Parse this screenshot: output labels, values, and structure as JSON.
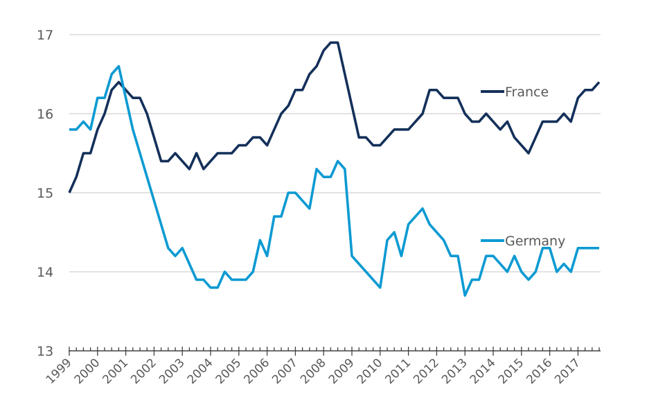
{
  "chart_data": {
    "type": "line",
    "title": "",
    "xlabel": "",
    "ylabel": "",
    "ylim": [
      13,
      17
    ],
    "yticks": [
      "13",
      "14",
      "15",
      "16",
      "17"
    ],
    "grid": true,
    "x_start": "1999Q1",
    "x_frequency": "quarterly",
    "xtick_labels": [
      "1999",
      "2000",
      "2001",
      "2002",
      "2003",
      "2004",
      "2005",
      "2006",
      "2007",
      "2008",
      "2009",
      "2010",
      "2011",
      "2012",
      "2013",
      "2014",
      "2015",
      "2016",
      "2017"
    ],
    "series": [
      {
        "name": "France",
        "color": "#14305a",
        "values": [
          15.0,
          15.2,
          15.5,
          15.5,
          15.8,
          16.0,
          16.3,
          16.4,
          16.3,
          16.2,
          16.2,
          16.0,
          15.7,
          15.4,
          15.4,
          15.5,
          15.4,
          15.3,
          15.5,
          15.3,
          15.4,
          15.5,
          15.5,
          15.5,
          15.6,
          15.6,
          15.7,
          15.7,
          15.6,
          15.8,
          16.0,
          16.1,
          16.3,
          16.3,
          16.5,
          16.6,
          16.8,
          16.9,
          16.9,
          16.5,
          16.1,
          15.7,
          15.7,
          15.6,
          15.6,
          15.7,
          15.8,
          15.8,
          15.8,
          15.9,
          16.0,
          16.3,
          16.3,
          16.2,
          16.2,
          16.2,
          16.0,
          15.9,
          15.9,
          16.0,
          15.9,
          15.8,
          15.9,
          15.7,
          15.6,
          15.5,
          15.7,
          15.9,
          15.9,
          15.9,
          16.0,
          15.9,
          16.2,
          16.3,
          16.3,
          16.4
        ]
      },
      {
        "name": "Germany",
        "color": "#0c9ad2",
        "values": [
          15.8,
          15.8,
          15.9,
          15.8,
          16.2,
          16.2,
          16.5,
          16.6,
          16.2,
          15.8,
          15.5,
          15.2,
          14.9,
          14.6,
          14.3,
          14.2,
          14.3,
          14.1,
          13.9,
          13.9,
          13.8,
          13.8,
          14.0,
          13.9,
          13.9,
          13.9,
          14.0,
          14.4,
          14.2,
          14.7,
          14.7,
          15.0,
          15.0,
          14.9,
          14.8,
          15.3,
          15.2,
          15.2,
          15.4,
          15.3,
          14.2,
          14.1,
          14.0,
          13.9,
          13.8,
          14.4,
          14.5,
          14.2,
          14.6,
          14.7,
          14.8,
          14.6,
          14.5,
          14.4,
          14.2,
          14.2,
          13.7,
          13.9,
          13.9,
          14.2,
          14.2,
          14.1,
          14.0,
          14.2,
          14.0,
          13.9,
          14.0,
          14.3,
          14.3,
          14.0,
          14.1,
          14.0,
          14.3,
          14.3,
          14.3,
          14.3
        ]
      }
    ],
    "legend": [
      "France",
      "Germany"
    ],
    "legend_placement": "inline-right"
  }
}
